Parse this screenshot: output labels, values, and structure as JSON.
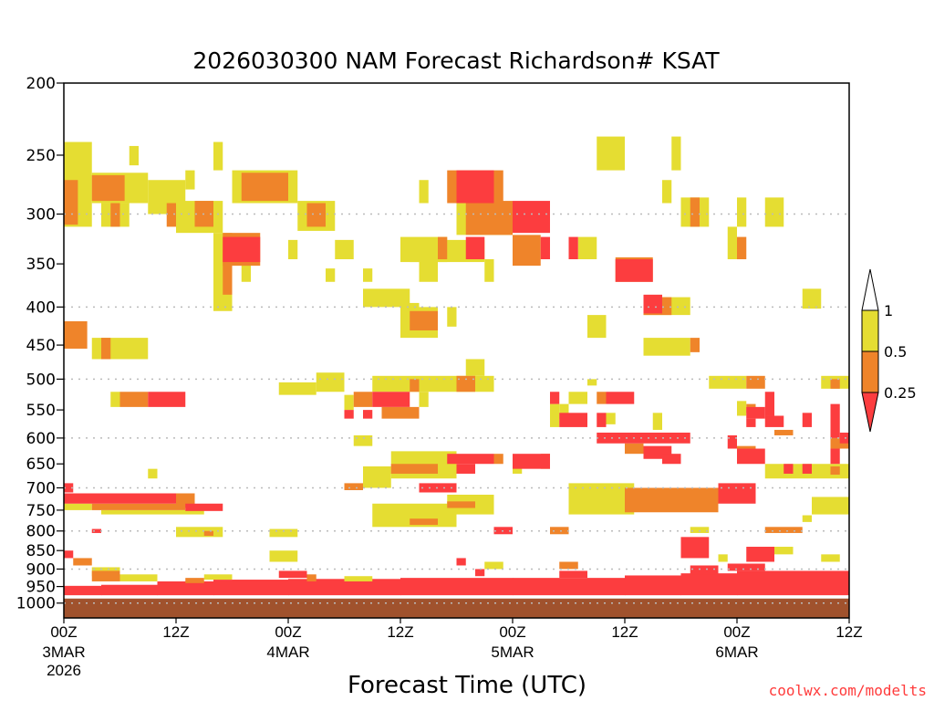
{
  "chart_data": {
    "type": "heatmap",
    "title": "2026030300 NAM Forecast Richardson# KSAT",
    "xlabel": "Forecast Time (UTC)",
    "ylabel": "",
    "credit": "coolwx.com/modelts",
    "x_unit": "forecast hour",
    "xlim": [
      0,
      84
    ],
    "ylim_hpa": [
      200,
      1047
    ],
    "y_scale": "log-pressure",
    "y_ticks": [
      200,
      250,
      300,
      350,
      400,
      450,
      500,
      550,
      600,
      650,
      700,
      750,
      800,
      850,
      900,
      950,
      1000
    ],
    "grid_lines_hpa": [
      300,
      400,
      500,
      600,
      700,
      800,
      900,
      1000
    ],
    "x_ticks": [
      {
        "hour": 0,
        "label": "00Z",
        "date": "3MAR",
        "year": "2026"
      },
      {
        "hour": 12,
        "label": "12Z"
      },
      {
        "hour": 24,
        "label": "00Z",
        "date": "4MAR"
      },
      {
        "hour": 36,
        "label": "12Z"
      },
      {
        "hour": 48,
        "label": "00Z",
        "date": "5MAR"
      },
      {
        "hour": 60,
        "label": "12Z"
      },
      {
        "hour": 72,
        "label": "00Z",
        "date": "6MAR"
      },
      {
        "hour": 84,
        "label": "12Z"
      }
    ],
    "categories": [
      {
        "range": "0.5-1",
        "color": "#e5dd32"
      },
      {
        "range": "0.25-0.5",
        "color": "#ef842a"
      },
      {
        "range": "<0.25",
        "color": "#fc3d3f"
      }
    ],
    "legend": {
      "position": "right",
      "labels": [
        "1",
        "0.5",
        "0.25"
      ],
      "above_color": "#ffffff"
    },
    "surface": {
      "pressure_hpa": 986,
      "color": "#a0522d"
    },
    "boundary_layer": [
      [
        0,
        4,
        948,
        976
      ],
      [
        4,
        10,
        945,
        976
      ],
      [
        10,
        16,
        935,
        976
      ],
      [
        16,
        24,
        930,
        976
      ],
      [
        24,
        36,
        928,
        976
      ],
      [
        36,
        48,
        925,
        976
      ],
      [
        48,
        60,
        925,
        976
      ],
      [
        60,
        66,
        918,
        976
      ],
      [
        66,
        72,
        912,
        976
      ],
      [
        72,
        84,
        905,
        976
      ]
    ],
    "cells": [
      [
        0,
        3,
        240,
        312,
        0
      ],
      [
        3,
        9,
        264,
        290,
        0
      ],
      [
        3,
        6.5,
        266,
        288,
        1
      ],
      [
        0,
        1.5,
        270,
        310,
        1
      ],
      [
        4,
        7,
        290,
        312,
        0
      ],
      [
        5,
        6,
        290,
        312,
        1
      ],
      [
        9,
        13,
        270,
        300,
        0
      ],
      [
        12,
        17,
        288,
        318,
        0
      ],
      [
        11,
        12,
        290,
        312,
        1
      ],
      [
        14,
        16,
        288,
        312,
        1
      ],
      [
        16,
        17,
        240,
        262,
        0
      ],
      [
        7,
        8,
        243,
        258,
        0
      ],
      [
        13,
        14,
        262,
        278,
        0
      ],
      [
        18,
        25,
        262,
        290,
        0
      ],
      [
        19,
        24,
        264,
        288,
        1
      ],
      [
        25,
        29,
        288,
        316,
        0
      ],
      [
        26,
        28,
        290,
        312,
        1
      ],
      [
        16,
        18,
        318,
        405,
        0
      ],
      [
        17,
        18,
        335,
        385,
        1
      ],
      [
        17,
        21,
        318,
        352,
        1
      ],
      [
        17,
        21,
        322,
        348,
        2
      ],
      [
        19,
        20,
        350,
        370,
        0
      ],
      [
        24,
        25,
        325,
        345,
        0
      ],
      [
        29,
        31,
        325,
        345,
        0
      ],
      [
        28,
        29,
        355,
        370,
        0
      ],
      [
        32,
        33,
        355,
        370,
        0
      ],
      [
        36,
        41,
        322,
        348,
        0
      ],
      [
        40,
        41,
        322,
        345,
        1
      ],
      [
        38,
        40,
        345,
        370,
        0
      ],
      [
        32,
        37,
        378,
        400,
        0
      ],
      [
        36,
        38,
        395,
        420,
        0
      ],
      [
        36,
        40,
        400,
        440,
        0
      ],
      [
        37,
        40,
        405,
        430,
        1
      ],
      [
        41,
        42,
        400,
        425,
        0
      ],
      [
        38,
        39,
        270,
        290,
        0
      ],
      [
        41,
        47,
        262,
        290,
        1
      ],
      [
        42,
        46,
        262,
        290,
        2
      ],
      [
        42,
        48,
        290,
        320,
        0
      ],
      [
        43,
        48,
        288,
        320,
        1
      ],
      [
        48,
        52,
        288,
        318,
        2
      ],
      [
        37,
        45,
        325,
        348,
        0
      ],
      [
        43,
        45,
        322,
        345,
        2
      ],
      [
        45,
        46,
        345,
        370,
        0
      ],
      [
        48,
        51,
        320,
        352,
        1
      ],
      [
        51,
        52,
        322,
        345,
        2
      ],
      [
        54,
        55,
        322,
        345,
        2
      ],
      [
        55,
        57,
        322,
        345,
        0
      ],
      [
        59,
        63,
        343,
        370,
        1
      ],
      [
        59,
        63,
        345,
        370,
        2
      ],
      [
        62,
        67,
        388,
        410,
        0
      ],
      [
        62,
        65,
        388,
        410,
        1
      ],
      [
        62,
        64,
        385,
        408,
        2
      ],
      [
        56,
        58,
        410,
        440,
        0
      ],
      [
        57,
        60,
        236,
        262,
        0
      ],
      [
        65,
        66,
        236,
        262,
        0
      ],
      [
        64,
        65,
        270,
        290,
        0
      ],
      [
        66,
        69,
        285,
        312,
        0
      ],
      [
        67,
        68,
        285,
        312,
        1
      ],
      [
        72,
        73,
        285,
        312,
        0
      ],
      [
        75,
        77,
        285,
        312,
        0
      ],
      [
        71,
        72,
        312,
        345,
        0
      ],
      [
        72,
        73,
        322,
        345,
        1
      ],
      [
        79,
        81,
        378,
        402,
        0
      ],
      [
        62,
        67,
        440,
        465,
        0
      ],
      [
        67,
        68,
        440,
        460,
        1
      ],
      [
        3,
        9,
        440,
        470,
        0
      ],
      [
        4,
        5,
        440,
        470,
        1
      ],
      [
        0,
        2.5,
        418,
        455,
        1
      ],
      [
        27,
        30,
        490,
        520,
        0
      ],
      [
        23,
        27,
        505,
        525,
        0
      ],
      [
        33,
        46,
        495,
        520,
        0
      ],
      [
        37,
        38,
        500,
        520,
        1
      ],
      [
        42,
        44,
        495,
        520,
        1
      ],
      [
        43,
        45,
        470,
        495,
        0
      ],
      [
        5,
        6,
        520,
        545,
        0
      ],
      [
        6,
        9,
        520,
        545,
        1
      ],
      [
        9,
        13,
        520,
        545,
        2
      ],
      [
        30,
        31,
        525,
        550,
        0
      ],
      [
        31,
        33,
        520,
        545,
        1
      ],
      [
        33,
        37,
        520,
        545,
        2
      ],
      [
        34,
        38,
        545,
        565,
        1
      ],
      [
        30,
        31,
        550,
        565,
        2
      ],
      [
        32,
        33,
        550,
        565,
        2
      ],
      [
        38,
        39,
        520,
        545,
        0
      ],
      [
        69,
        73,
        495,
        515,
        0
      ],
      [
        73,
        75,
        495,
        515,
        1
      ],
      [
        81,
        84,
        495,
        515,
        0
      ],
      [
        82,
        83,
        500,
        515,
        1
      ],
      [
        75,
        76,
        520,
        560,
        2
      ],
      [
        56,
        57,
        500,
        510,
        0
      ],
      [
        52,
        53,
        520,
        540,
        2
      ],
      [
        54,
        56,
        520,
        540,
        0
      ],
      [
        57,
        58,
        520,
        540,
        1
      ],
      [
        58,
        61,
        520,
        540,
        2
      ],
      [
        52,
        53,
        540,
        580,
        0
      ],
      [
        53,
        54,
        540,
        565,
        0
      ],
      [
        53,
        56,
        555,
        580,
        2
      ],
      [
        57,
        58,
        555,
        580,
        2
      ],
      [
        58,
        59,
        555,
        575,
        0
      ],
      [
        57,
        67,
        590,
        610,
        2
      ],
      [
        60,
        62,
        610,
        630,
        1
      ],
      [
        62,
        65,
        615,
        640,
        2
      ],
      [
        64,
        66,
        630,
        650,
        2
      ],
      [
        63,
        64,
        555,
        585,
        0
      ],
      [
        71,
        72,
        595,
        620,
        2
      ],
      [
        72,
        75,
        620,
        650,
        2
      ],
      [
        72,
        74,
        615,
        625,
        1
      ],
      [
        72,
        73,
        535,
        560,
        0
      ],
      [
        73,
        74,
        540,
        555,
        1
      ],
      [
        73,
        75,
        545,
        565,
        2
      ],
      [
        73,
        74,
        565,
        580,
        2
      ],
      [
        75,
        77,
        560,
        580,
        2
      ],
      [
        76,
        78,
        585,
        595,
        1
      ],
      [
        79,
        80,
        555,
        580,
        2
      ],
      [
        82,
        83,
        540,
        600,
        2
      ],
      [
        83,
        84,
        590,
        610,
        2
      ],
      [
        82,
        84,
        600,
        620,
        1
      ],
      [
        82,
        83,
        620,
        650,
        2
      ],
      [
        75,
        84,
        650,
        680,
        0
      ],
      [
        77,
        78,
        650,
        670,
        2
      ],
      [
        79,
        80,
        650,
        670,
        2
      ],
      [
        82,
        83,
        655,
        672,
        1
      ],
      [
        31,
        33,
        595,
        615,
        0
      ],
      [
        35,
        42,
        625,
        680,
        0
      ],
      [
        35,
        40,
        650,
        670,
        1
      ],
      [
        41,
        46,
        630,
        650,
        2
      ],
      [
        46,
        47,
        630,
        650,
        1
      ],
      [
        42,
        44,
        650,
        670,
        2
      ],
      [
        48,
        52,
        630,
        660,
        2
      ],
      [
        48,
        49,
        650,
        670,
        0
      ],
      [
        51,
        52,
        630,
        660,
        1
      ],
      [
        32,
        35,
        655,
        700,
        0
      ],
      [
        9,
        10,
        660,
        680,
        0
      ],
      [
        38,
        42,
        690,
        710,
        2
      ],
      [
        30,
        32,
        690,
        705,
        1
      ],
      [
        41,
        46,
        715,
        760,
        0
      ],
      [
        41,
        44,
        730,
        745,
        1
      ],
      [
        54,
        61,
        690,
        760,
        0
      ],
      [
        60,
        70,
        700,
        755,
        1
      ],
      [
        70,
        74,
        690,
        735,
        2
      ],
      [
        80,
        84,
        720,
        760,
        0
      ],
      [
        79,
        80,
        762,
        778,
        0
      ],
      [
        0,
        1,
        690,
        710,
        2
      ],
      [
        0,
        12,
        712,
        735,
        2
      ],
      [
        12,
        14,
        712,
        745,
        1
      ],
      [
        0,
        3,
        735,
        750,
        0
      ],
      [
        3,
        13,
        735,
        750,
        1
      ],
      [
        13,
        17,
        735,
        752,
        2
      ],
      [
        4,
        15,
        750,
        760,
        0
      ],
      [
        33,
        42,
        735,
        790,
        0
      ],
      [
        37,
        40,
        770,
        785,
        1
      ],
      [
        12,
        17,
        790,
        815,
        0
      ],
      [
        15,
        16,
        800,
        812,
        1
      ],
      [
        22,
        25,
        795,
        815,
        0
      ],
      [
        3,
        4,
        795,
        805,
        2
      ],
      [
        46,
        48,
        790,
        808,
        2
      ],
      [
        52,
        54,
        790,
        808,
        1
      ],
      [
        67,
        69,
        790,
        805,
        0
      ],
      [
        75,
        79,
        790,
        805,
        1
      ],
      [
        0,
        1,
        850,
        870,
        2
      ],
      [
        1,
        3,
        870,
        890,
        1
      ],
      [
        3,
        6,
        895,
        920,
        0
      ],
      [
        3,
        6,
        905,
        935,
        1
      ],
      [
        6,
        10,
        915,
        935,
        0
      ],
      [
        13,
        15,
        925,
        940,
        1
      ],
      [
        15,
        18,
        915,
        930,
        0
      ],
      [
        22,
        25,
        850,
        880,
        0
      ],
      [
        23,
        26,
        905,
        925,
        2
      ],
      [
        26,
        27,
        915,
        935,
        1
      ],
      [
        30,
        33,
        920,
        935,
        0
      ],
      [
        42,
        43,
        870,
        890,
        2
      ],
      [
        44,
        45,
        900,
        920,
        2
      ],
      [
        45,
        47,
        880,
        900,
        0
      ],
      [
        53,
        55,
        880,
        900,
        1
      ],
      [
        53,
        56,
        905,
        925,
        2
      ],
      [
        66,
        69,
        815,
        870,
        2
      ],
      [
        67,
        70,
        890,
        915,
        2
      ],
      [
        70,
        71,
        860,
        880,
        0
      ],
      [
        71,
        75,
        885,
        905,
        2
      ],
      [
        73,
        76,
        840,
        880,
        2
      ],
      [
        75,
        78,
        840,
        860,
        0
      ],
      [
        81,
        83,
        860,
        880,
        0
      ]
    ]
  }
}
